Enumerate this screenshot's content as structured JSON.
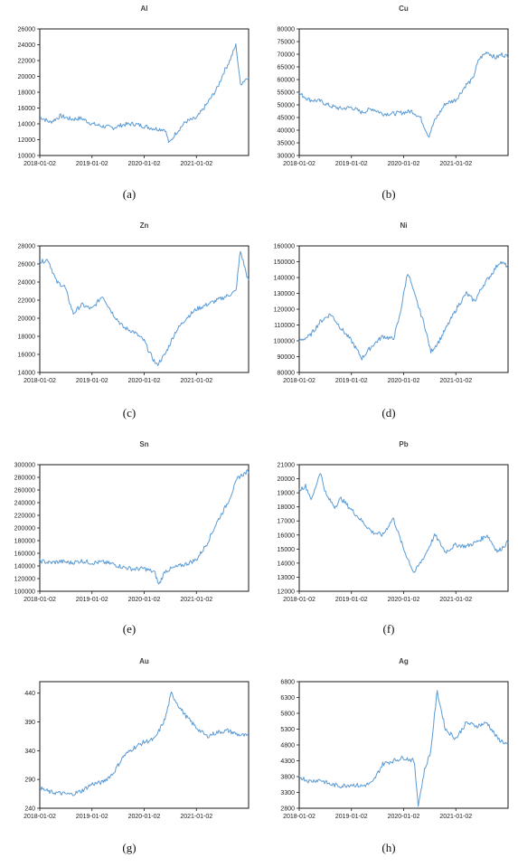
{
  "line_color": "#5b9bd5",
  "x_tick_labels": [
    "2018-01-02",
    "2019-01-02",
    "2020-01-02",
    "2021-01-02"
  ],
  "chart_data": [
    {
      "type": "line",
      "title": "Al",
      "caption": "(a)",
      "ylim": [
        10000,
        26000
      ],
      "yticks": [
        10000,
        12000,
        14000,
        16000,
        18000,
        20000,
        22000,
        24000,
        26000
      ],
      "x": [
        0,
        0.05,
        0.1,
        0.15,
        0.2,
        0.25,
        0.3,
        0.35,
        0.4,
        0.45,
        0.5,
        0.55,
        0.6,
        0.62,
        0.65,
        0.7,
        0.75,
        0.8,
        0.85,
        0.88,
        0.91,
        0.94,
        0.96,
        0.98,
        1
      ],
      "series": [
        {
          "values": [
            14900,
            14200,
            15000,
            14600,
            14700,
            14000,
            13700,
            13500,
            13900,
            14000,
            13700,
            13400,
            13300,
            11500,
            12800,
            14300,
            14700,
            16500,
            18500,
            20500,
            22000,
            24000,
            19000,
            19500,
            20000
          ]
        }
      ]
    },
    {
      "type": "line",
      "title": "Cu",
      "caption": "(b)",
      "ylim": [
        30000,
        80000
      ],
      "yticks": [
        30000,
        35000,
        40000,
        45000,
        50000,
        55000,
        60000,
        65000,
        70000,
        75000,
        80000
      ],
      "x": [
        0,
        0.05,
        0.1,
        0.15,
        0.2,
        0.25,
        0.3,
        0.35,
        0.4,
        0.45,
        0.5,
        0.54,
        0.58,
        0.62,
        0.65,
        0.7,
        0.75,
        0.8,
        0.83,
        0.86,
        0.9,
        0.94,
        0.97,
        1
      ],
      "series": [
        {
          "values": [
            54500,
            52000,
            51500,
            49500,
            48500,
            49000,
            47000,
            48500,
            46500,
            46500,
            47000,
            47500,
            45000,
            37500,
            44000,
            50500,
            52000,
            58000,
            60000,
            68000,
            71000,
            68500,
            70000,
            69000
          ]
        }
      ]
    },
    {
      "type": "line",
      "title": "Zn",
      "caption": "(c)",
      "ylim": [
        14000,
        28000
      ],
      "yticks": [
        14000,
        16000,
        18000,
        20000,
        22000,
        24000,
        26000,
        28000
      ],
      "x": [
        0,
        0.04,
        0.08,
        0.12,
        0.16,
        0.2,
        0.25,
        0.3,
        0.35,
        0.4,
        0.45,
        0.5,
        0.53,
        0.56,
        0.6,
        0.65,
        0.7,
        0.75,
        0.8,
        0.85,
        0.9,
        0.94,
        0.96,
        1
      ],
      "series": [
        {
          "values": [
            26200,
            26500,
            24000,
            23500,
            20500,
            21500,
            21000,
            22500,
            20500,
            19000,
            18500,
            17500,
            16000,
            14800,
            16000,
            18500,
            20000,
            21000,
            21500,
            22000,
            22500,
            23000,
            27500,
            24000
          ]
        }
      ]
    },
    {
      "type": "line",
      "title": "Ni",
      "caption": "(d)",
      "ylim": [
        80000,
        160000
      ],
      "yticks": [
        80000,
        90000,
        100000,
        110000,
        120000,
        130000,
        140000,
        150000,
        160000
      ],
      "x": [
        0,
        0.05,
        0.1,
        0.15,
        0.2,
        0.25,
        0.3,
        0.35,
        0.4,
        0.45,
        0.48,
        0.52,
        0.55,
        0.6,
        0.63,
        0.67,
        0.72,
        0.76,
        0.8,
        0.84,
        0.88,
        0.92,
        0.96,
        1
      ],
      "series": [
        {
          "values": [
            100000,
            103000,
            112000,
            117000,
            108000,
            100000,
            89000,
            97000,
            103000,
            101000,
            115000,
            144000,
            130000,
            110000,
            93000,
            100000,
            112000,
            122000,
            130000,
            125000,
            135000,
            142000,
            150000,
            147000
          ]
        }
      ]
    },
    {
      "type": "line",
      "title": "Sn",
      "caption": "(e)",
      "ylim": [
        100000,
        300000
      ],
      "yticks": [
        100000,
        120000,
        140000,
        160000,
        180000,
        200000,
        220000,
        240000,
        260000,
        280000,
        300000
      ],
      "x": [
        0,
        0.05,
        0.1,
        0.15,
        0.2,
        0.25,
        0.3,
        0.35,
        0.4,
        0.45,
        0.5,
        0.55,
        0.57,
        0.6,
        0.65,
        0.7,
        0.75,
        0.8,
        0.85,
        0.9,
        0.95,
        1
      ],
      "series": [
        {
          "values": [
            148000,
            145000,
            147000,
            145000,
            148000,
            145000,
            146000,
            143000,
            138000,
            135000,
            136000,
            130000,
            110000,
            132000,
            138000,
            143000,
            150000,
            175000,
            210000,
            240000,
            280000,
            290000
          ]
        }
      ]
    },
    {
      "type": "line",
      "title": "Pb",
      "caption": "(f)",
      "ylim": [
        12000,
        21000
      ],
      "yticks": [
        12000,
        13000,
        14000,
        15000,
        16000,
        17000,
        18000,
        19000,
        20000,
        21000
      ],
      "x": [
        0,
        0.03,
        0.06,
        0.1,
        0.13,
        0.17,
        0.2,
        0.25,
        0.3,
        0.35,
        0.4,
        0.45,
        0.5,
        0.55,
        0.6,
        0.65,
        0.7,
        0.75,
        0.8,
        0.85,
        0.9,
        0.95,
        1
      ],
      "series": [
        {
          "values": [
            19200,
            19500,
            18500,
            20500,
            18800,
            18000,
            18600,
            17800,
            17000,
            16200,
            16000,
            17200,
            15000,
            13300,
            14500,
            16000,
            14800,
            15300,
            15200,
            15500,
            16000,
            14800,
            15500
          ]
        }
      ]
    },
    {
      "type": "line",
      "title": "Au",
      "caption": "(g)",
      "ylim": [
        240,
        460
      ],
      "yticks": [
        240,
        290,
        340,
        390,
        440
      ],
      "x": [
        0,
        0.05,
        0.1,
        0.15,
        0.2,
        0.25,
        0.3,
        0.35,
        0.4,
        0.45,
        0.5,
        0.55,
        0.6,
        0.63,
        0.67,
        0.7,
        0.75,
        0.8,
        0.85,
        0.9,
        0.95,
        1
      ],
      "series": [
        {
          "values": [
            275,
            268,
            266,
            264,
            270,
            282,
            285,
            300,
            330,
            345,
            355,
            360,
            395,
            440,
            415,
            400,
            380,
            365,
            372,
            375,
            368,
            365
          ]
        }
      ]
    },
    {
      "type": "line",
      "title": "Ag",
      "caption": "(h)",
      "ylim": [
        2800,
        6800
      ],
      "yticks": [
        2800,
        3300,
        3800,
        4300,
        4800,
        5300,
        5800,
        6300,
        6800
      ],
      "x": [
        0,
        0.05,
        0.1,
        0.15,
        0.2,
        0.25,
        0.3,
        0.35,
        0.4,
        0.45,
        0.5,
        0.55,
        0.57,
        0.6,
        0.63,
        0.66,
        0.7,
        0.75,
        0.8,
        0.85,
        0.9,
        0.95,
        1
      ],
      "series": [
        {
          "values": [
            3800,
            3650,
            3700,
            3550,
            3500,
            3550,
            3500,
            3600,
            4200,
            4300,
            4400,
            4300,
            2900,
            4000,
            4600,
            6500,
            5300,
            5000,
            5500,
            5400,
            5500,
            5000,
            4800
          ]
        }
      ]
    }
  ]
}
